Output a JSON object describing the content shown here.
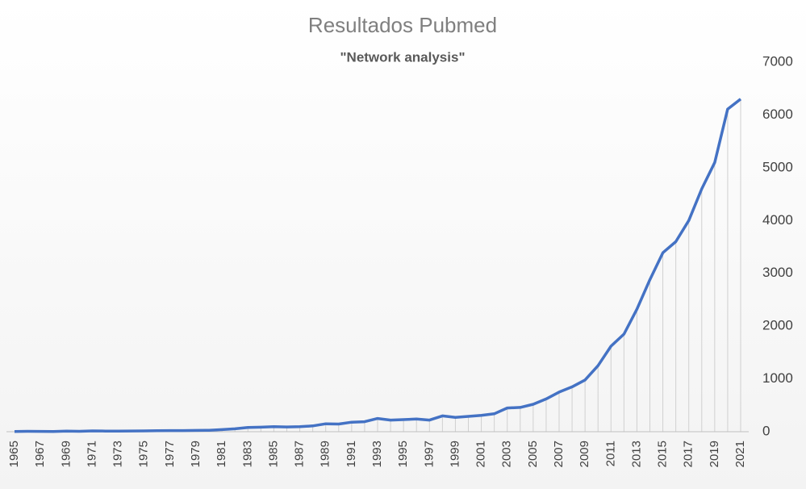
{
  "chart_data": {
    "type": "line",
    "title": "Resultados Pubmed",
    "subtitle": "\"Network analysis\"",
    "categories": [
      "1965",
      null,
      "1967",
      null,
      "1969",
      null,
      "1971",
      null,
      "1973",
      null,
      "1975",
      null,
      "1977",
      null,
      "1979",
      null,
      "1981",
      null,
      "1983",
      null,
      "1985",
      null,
      "1987",
      null,
      "1989",
      null,
      "1991",
      null,
      "1993",
      null,
      "1995",
      null,
      "1997",
      null,
      "1999",
      null,
      "2001",
      null,
      "2003",
      null,
      "2005",
      null,
      "2007",
      null,
      "2009",
      null,
      "2011",
      null,
      "2013",
      null,
      "2015",
      null,
      "2017",
      null,
      "2019",
      null,
      "2021"
    ],
    "series": [
      {
        "name": "Resultados",
        "color": "#4472c4",
        "values": [
          5,
          8,
          6,
          5,
          10,
          8,
          15,
          12,
          10,
          14,
          15,
          18,
          22,
          22,
          25,
          28,
          40,
          55,
          80,
          85,
          95,
          90,
          95,
          110,
          150,
          145,
          180,
          190,
          250,
          220,
          230,
          240,
          220,
          300,
          270,
          290,
          310,
          340,
          450,
          460,
          520,
          620,
          750,
          850,
          980,
          1250,
          1620,
          1850,
          2320,
          2880,
          3390,
          3600,
          4000,
          4600,
          5100,
          6110,
          6300
        ]
      }
    ],
    "ylim": [
      0,
      7000
    ],
    "yticks": [
      0,
      1000,
      2000,
      3000,
      4000,
      5000,
      6000,
      7000
    ],
    "y_axis_side": "right",
    "grid": false,
    "drop_lines": true,
    "drop_line_color": "#d0d0d0"
  }
}
